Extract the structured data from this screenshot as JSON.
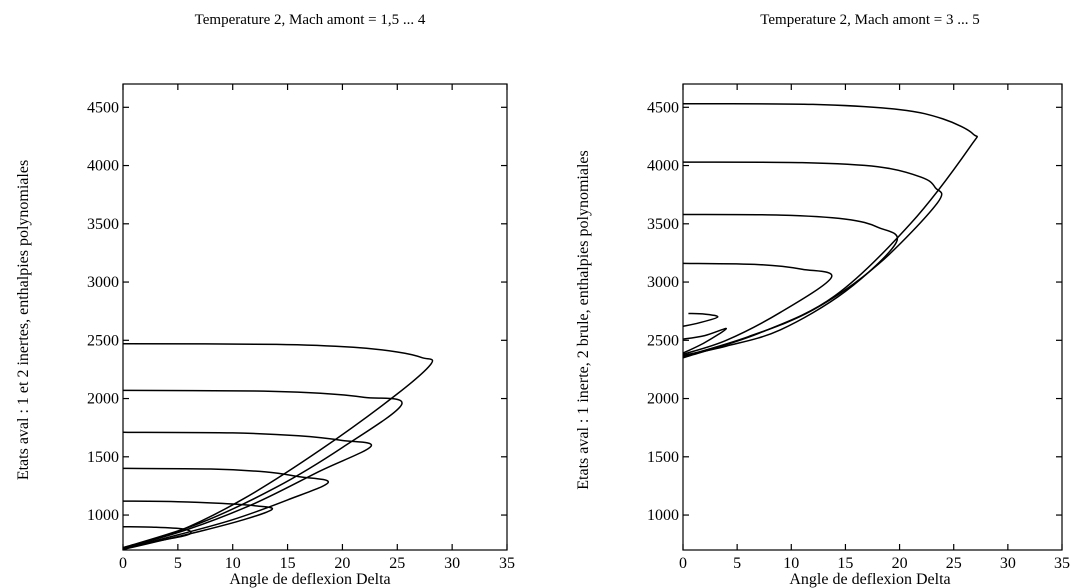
{
  "chart_data": [
    {
      "type": "line",
      "title": "Temperature 2, Mach amont = 1,5 ... 4",
      "xlabel": "Angle de deflexion Delta",
      "ylabel": "Etats aval : 1 et 2 inertes, enthalpies polynomiales",
      "xlim": [
        0,
        35
      ],
      "ylim": [
        700,
        4700
      ],
      "xticks": [
        "0",
        "5",
        "10",
        "15",
        "20",
        "25",
        "30",
        "35"
      ],
      "yticks": [
        "1000",
        "1500",
        "2000",
        "2500",
        "3000",
        "3500",
        "4000",
        "4500"
      ],
      "grid": false,
      "series": [
        {
          "points": [
            [
              0,
              900
            ],
            [
              3,
              895
            ],
            [
              5.5,
              880
            ],
            [
              6.2,
              850
            ],
            [
              5.5,
              820
            ],
            [
              3,
              775
            ],
            [
              0,
              710
            ]
          ]
        },
        {
          "points": [
            [
              0,
              1120
            ],
            [
              5,
              1115
            ],
            [
              9,
              1100
            ],
            [
              12,
              1080
            ],
            [
              13.6,
              1050
            ],
            [
              11,
              960
            ],
            [
              7,
              860
            ],
            [
              3,
              770
            ],
            [
              0,
              705
            ]
          ]
        },
        {
          "points": [
            [
              0,
              1400
            ],
            [
              8,
              1395
            ],
            [
              13,
              1370
            ],
            [
              16,
              1330
            ],
            [
              18.7,
              1280
            ],
            [
              15,
              1130
            ],
            [
              10,
              960
            ],
            [
              5,
              830
            ],
            [
              0,
              710
            ]
          ]
        },
        {
          "points": [
            [
              0,
              1710
            ],
            [
              10,
              1705
            ],
            [
              16,
              1680
            ],
            [
              20,
              1640
            ],
            [
              22.6,
              1590
            ],
            [
              18,
              1380
            ],
            [
              12,
              1100
            ],
            [
              6,
              880
            ],
            [
              0,
              715
            ]
          ]
        },
        {
          "points": [
            [
              0,
              2070
            ],
            [
              12,
              2065
            ],
            [
              18,
              2045
            ],
            [
              22,
              2010
            ],
            [
              25.4,
              1950
            ],
            [
              20,
              1580
            ],
            [
              14,
              1240
            ],
            [
              7,
              930
            ],
            [
              0,
              720
            ]
          ]
        },
        {
          "points": [
            [
              0,
              2470
            ],
            [
              14,
              2465
            ],
            [
              21,
              2440
            ],
            [
              25,
              2400
            ],
            [
              27.3,
              2350
            ],
            [
              28.1,
              2300
            ],
            [
              25,
              2040
            ],
            [
              18,
              1560
            ],
            [
              11,
              1140
            ],
            [
              5,
              860
            ],
            [
              0,
              720
            ]
          ]
        }
      ]
    },
    {
      "type": "line",
      "title": "Temperature 2, Mach amont = 3 ... 5",
      "xlabel": "Angle de deflexion Delta",
      "ylabel": "Etats aval : 1 inerte, 2 brule, enthalpies polynomiales",
      "xlim": [
        0,
        35
      ],
      "ylim": [
        700,
        4700
      ],
      "xticks": [
        "0",
        "5",
        "10",
        "15",
        "20",
        "25",
        "30",
        "35"
      ],
      "yticks": [
        "1000",
        "1500",
        "2000",
        "2500",
        "3000",
        "3500",
        "4000",
        "4500"
      ],
      "grid": false,
      "series": [
        {
          "points": [
            [
              0.5,
              2730
            ],
            [
              2,
              2725
            ],
            [
              3.2,
              2700
            ],
            [
              1.5,
              2650
            ],
            [
              0,
              2620
            ]
          ]
        },
        {
          "points": [
            [
              0,
              2510
            ],
            [
              2,
              2540
            ],
            [
              4,
              2600
            ],
            [
              2,
              2480
            ],
            [
              0,
              2390
            ]
          ]
        },
        {
          "points": [
            [
              0,
              3160
            ],
            [
              7,
              3150
            ],
            [
              11,
              3110
            ],
            [
              13.7,
              3040
            ],
            [
              9,
              2740
            ],
            [
              4,
              2500
            ],
            [
              0,
              2380
            ]
          ]
        },
        {
          "points": [
            [
              0,
              3580
            ],
            [
              9,
              3575
            ],
            [
              15,
              3540
            ],
            [
              18,
              3470
            ],
            [
              19.7,
              3340
            ],
            [
              15,
              2920
            ],
            [
              9,
              2590
            ],
            [
              4,
              2450
            ],
            [
              0,
              2370
            ]
          ]
        },
        {
          "points": [
            [
              0,
              4030
            ],
            [
              11,
              4025
            ],
            [
              18,
              3990
            ],
            [
              22,
              3900
            ],
            [
              23.3,
              3810
            ],
            [
              23.5,
              3680
            ],
            [
              18,
              3150
            ],
            [
              12,
              2760
            ],
            [
              6,
              2530
            ],
            [
              0,
              2360
            ]
          ]
        },
        {
          "points": [
            [
              0,
              4530
            ],
            [
              12,
              4525
            ],
            [
              20,
              4480
            ],
            [
              24,
              4400
            ],
            [
              26.8,
              4270
            ],
            [
              26.5,
              4160
            ],
            [
              21,
              3500
            ],
            [
              14,
              2880
            ],
            [
              7,
              2560
            ],
            [
              0,
              2350
            ]
          ]
        }
      ]
    }
  ]
}
